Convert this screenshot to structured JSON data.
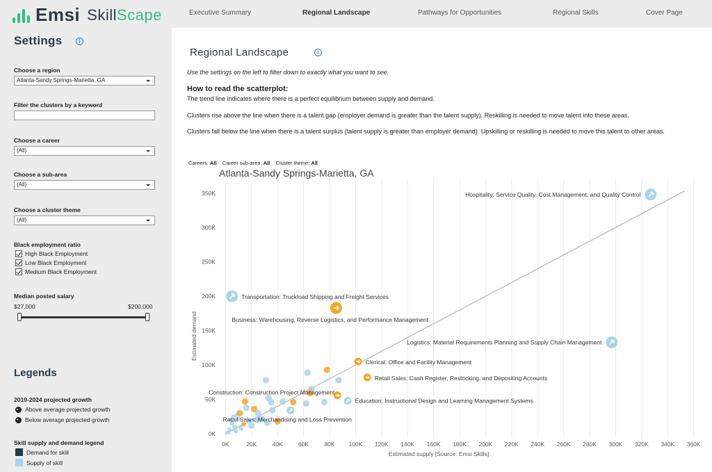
{
  "brand": {
    "name": "Emsi",
    "product_a": "Skill",
    "product_b": "Scape"
  },
  "nav": [
    {
      "label": "Executive Summary",
      "active": false
    },
    {
      "label": "Regional Landscape",
      "active": true
    },
    {
      "label": "Pathways for Opportunities",
      "active": false
    },
    {
      "label": "Regional Skills",
      "active": false
    },
    {
      "label": "Cover Page",
      "active": false
    }
  ],
  "sidebar": {
    "title": "Settings",
    "region_label": "Choose a region",
    "region_value": "Atlanta-Sandy Springs-Marietta, GA",
    "keyword_label": "Filter the clusters by a keyword",
    "career_label": "Choose a career",
    "career_value": "(All)",
    "subarea_label": "Choose a sub-area",
    "subarea_value": "(All)",
    "theme_label": "Choose a cluster theme",
    "theme_value": "(All)",
    "ratio_label": "Black employment ratio",
    "ratio_options": [
      "High Black Employment",
      "Low Black Employment",
      "Medium Black Employment"
    ],
    "salary_label": "Median posted salary",
    "salary_min": "$27,000",
    "salary_max": "$200,000",
    "legends_title": "Legends",
    "growth_title": "2019-2024 projected growth",
    "growth_above": "Above average projected growth",
    "growth_below": "Below average projected growth",
    "skill_title": "Skill supply and demand legend",
    "demand_label": "Demand for skill",
    "supply_label": "Supply of skill",
    "colors": {
      "demand": "#1f3b4d",
      "supply": "#a9d4ec"
    },
    "icons": {
      "info": "info-icon",
      "growth_above": "arrow-right-circle-icon",
      "growth_below": "arrow-down-right-circle-icon"
    }
  },
  "main": {
    "title": "Regional Landscape",
    "intro": "Use the settings on the left to filter down to exactly what you want to see.",
    "howto_title": "How to read the scatterplot:",
    "para1": "The trend line indicates where there is a perfect equilibrium between supply and demand.",
    "para2": "Clusters rise above the line when there is a talent gap (employer demand is greater than the talent supply). Reskilling is needed to move talent into these areas.",
    "para3": "Clusters fall below the line when there is a talent surplus (talent supply is greater than employer demand). Upskilling or reskilling is needed to move this talent to other areas.",
    "filter_careers_label": "Careers:",
    "filter_careers_value": "All",
    "filter_subarea_label": "Career sub-area:",
    "filter_subarea_value": "All",
    "filter_theme_label": "Cluster theme:",
    "filter_theme_value": "All"
  },
  "chart_data": {
    "type": "scatter",
    "title": "Atlanta-Sandy Springs-Marietta, GA",
    "xlabel": "Estimated supply [Source: Emsi Skills]",
    "ylabel": "Estimated demand",
    "xlim": [
      -5000,
      365000
    ],
    "ylim": [
      -5000,
      370000
    ],
    "xticks": [
      "0K",
      "20K",
      "40K",
      "60K",
      "80K",
      "100K",
      "120K",
      "140K",
      "160K",
      "180K",
      "200K",
      "220K",
      "240K",
      "260K",
      "280K",
      "300K",
      "320K",
      "340K",
      "360K"
    ],
    "yticks": [
      "0K",
      "50K",
      "100K",
      "150K",
      "200K",
      "250K",
      "300K",
      "350K"
    ],
    "trend_line": [
      [
        0,
        0
      ],
      [
        353000,
        353000
      ]
    ],
    "colors": {
      "above": "#f5a623",
      "below": "#a9d4ec"
    },
    "labeled_points": [
      {
        "x": 327000,
        "y": 348000,
        "growth": "below",
        "label": "Hospitality: Service Quality, Cost Management, and Quality Control"
      },
      {
        "x": 5000,
        "y": 200000,
        "growth": "below",
        "label": "Transportation: Truckload Shipping and Freight Services"
      },
      {
        "x": 85000,
        "y": 183000,
        "growth": "above",
        "label": "Business: Warehousing, Reverse Logistics, and Performance Management"
      },
      {
        "x": 297000,
        "y": 133000,
        "growth": "below",
        "label": "Logistics: Material Requirements Planning and Supply Chain Management"
      },
      {
        "x": 102000,
        "y": 105000,
        "growth": "above",
        "label": "Clerical: Office and Facility Management"
      },
      {
        "x": 109000,
        "y": 82000,
        "growth": "above",
        "label": "Retail Sales: Cash Register, Restocking, and Depositing Accounts"
      },
      {
        "x": 86000,
        "y": 56000,
        "growth": "above",
        "label": "Construction: Construction Project Management"
      },
      {
        "x": 94000,
        "y": 48000,
        "growth": "below",
        "label": "Education: Instructional Design and Learning Management Systems"
      },
      {
        "x": 50000,
        "y": 34000,
        "growth": "below",
        "label": "Retail Sales: Merchandising and Loss Prevention"
      }
    ],
    "points": [
      {
        "x": 63000,
        "y": 89000,
        "growth": "below"
      },
      {
        "x": 78000,
        "y": 93000,
        "growth": "above"
      },
      {
        "x": 31000,
        "y": 78000,
        "growth": "below"
      },
      {
        "x": 87000,
        "y": 78000,
        "growth": "below"
      },
      {
        "x": 66000,
        "y": 65000,
        "growth": "below"
      },
      {
        "x": 65000,
        "y": 59000,
        "growth": "above"
      },
      {
        "x": 33000,
        "y": 52000,
        "growth": "below"
      },
      {
        "x": 35000,
        "y": 46000,
        "growth": "below"
      },
      {
        "x": 44000,
        "y": 47000,
        "growth": "below"
      },
      {
        "x": 52000,
        "y": 46000,
        "growth": "above"
      },
      {
        "x": 62000,
        "y": 44000,
        "growth": "below"
      },
      {
        "x": 76000,
        "y": 46000,
        "growth": "below"
      },
      {
        "x": 15000,
        "y": 47000,
        "growth": "above"
      },
      {
        "x": 16000,
        "y": 38000,
        "growth": "below"
      },
      {
        "x": 9000,
        "y": 28000,
        "growth": "below"
      },
      {
        "x": 10000,
        "y": 22000,
        "growth": "below"
      },
      {
        "x": 22000,
        "y": 36000,
        "growth": "above"
      },
      {
        "x": 25000,
        "y": 30000,
        "growth": "below"
      },
      {
        "x": 28000,
        "y": 22000,
        "growth": "below"
      },
      {
        "x": 32000,
        "y": 16000,
        "growth": "below"
      },
      {
        "x": 40000,
        "y": 18000,
        "growth": "above"
      },
      {
        "x": 18000,
        "y": 18000,
        "growth": "below"
      },
      {
        "x": 20000,
        "y": 12000,
        "growth": "below"
      },
      {
        "x": 5000,
        "y": 15000,
        "growth": "below"
      },
      {
        "x": 7000,
        "y": 10000,
        "growth": "below"
      },
      {
        "x": 3000,
        "y": 6000,
        "growth": "below"
      },
      {
        "x": 12000,
        "y": 8000,
        "growth": "below"
      },
      {
        "x": 14000,
        "y": 14000,
        "growth": "above"
      },
      {
        "x": 8000,
        "y": 4000,
        "growth": "below"
      },
      {
        "x": 2000,
        "y": 2000,
        "growth": "below"
      },
      {
        "x": 24000,
        "y": 20000,
        "growth": "below"
      },
      {
        "x": 36000,
        "y": 34000,
        "growth": "below"
      },
      {
        "x": 4000,
        "y": 20000,
        "growth": "below"
      },
      {
        "x": 11000,
        "y": 30000,
        "growth": "above"
      },
      {
        "x": 6000,
        "y": 25000,
        "growth": "below"
      }
    ]
  }
}
